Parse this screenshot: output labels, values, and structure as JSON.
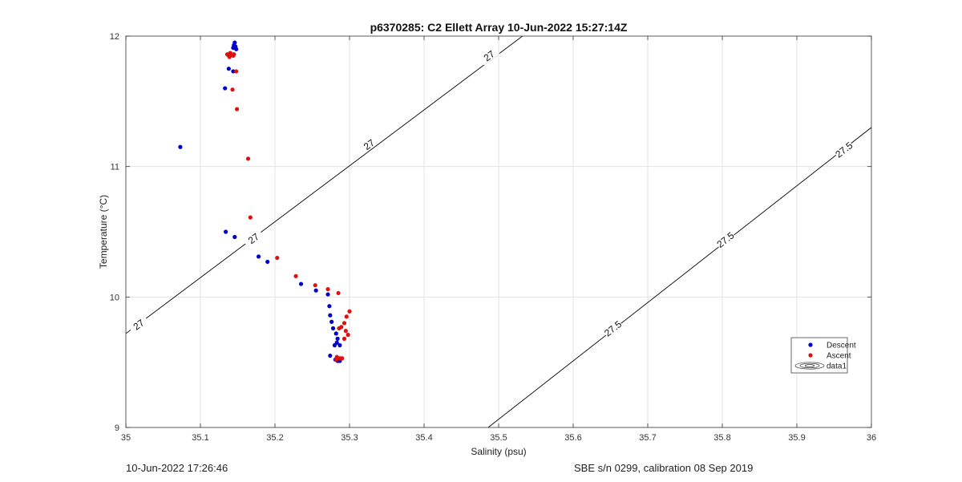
{
  "footer": {
    "left": "10-Jun-2022 17:26:46",
    "right": "SBE s/n 0299, calibration 08 Sep 2019"
  },
  "colors": {
    "descent": "#0000cc",
    "ascent": "#dd1111",
    "contour": "#000000",
    "grid": "#e3e3e3",
    "axis": "#333333"
  },
  "chart_data": {
    "type": "scatter",
    "title": "p6370285: C2 Ellett Array 10-Jun-2022 15:27:14Z",
    "xlabel": "Salinity (psu)",
    "ylabel": "Temperature (°C)",
    "xlim": [
      35,
      36
    ],
    "ylim": [
      9,
      12
    ],
    "xticks": [
      35,
      35.1,
      35.2,
      35.3,
      35.4,
      35.5,
      35.6,
      35.7,
      35.8,
      35.9,
      36
    ],
    "xtick_labels": [
      "35",
      "35.1",
      "35.2",
      "35.3",
      "35.4",
      "35.5",
      "35.6",
      "35.7",
      "35.8",
      "35.9",
      "36"
    ],
    "yticks": [
      9,
      10,
      11,
      12
    ],
    "ytick_labels": [
      "9",
      "10",
      "11",
      "12"
    ],
    "grid": true,
    "legend_position": "lower-right",
    "legend": [
      "Descent",
      "Ascent",
      "data1"
    ],
    "series": [
      {
        "name": "Descent",
        "points": [
          [
            35.073,
            11.15
          ],
          [
            35.133,
            11.6
          ],
          [
            35.138,
            11.75
          ],
          [
            35.144,
            11.73
          ],
          [
            35.145,
            11.93
          ],
          [
            35.146,
            11.95
          ],
          [
            35.147,
            11.92
          ],
          [
            35.148,
            11.9
          ],
          [
            35.144,
            11.91
          ],
          [
            35.134,
            10.5
          ],
          [
            35.146,
            10.46
          ],
          [
            35.178,
            10.31
          ],
          [
            35.19,
            10.27
          ],
          [
            35.235,
            10.1
          ],
          [
            35.255,
            10.05
          ],
          [
            35.271,
            10.02
          ],
          [
            35.273,
            9.93
          ],
          [
            35.274,
            9.86
          ],
          [
            35.276,
            9.81
          ],
          [
            35.278,
            9.76
          ],
          [
            35.282,
            9.72
          ],
          [
            35.284,
            9.68
          ],
          [
            35.283,
            9.65
          ],
          [
            35.287,
            9.63
          ],
          [
            35.28,
            9.63
          ],
          [
            35.274,
            9.55
          ],
          [
            35.281,
            9.52
          ],
          [
            35.284,
            9.51
          ],
          [
            35.287,
            9.51
          ]
        ]
      },
      {
        "name": "Ascent",
        "points": [
          [
            35.136,
            11.86
          ],
          [
            35.138,
            11.85
          ],
          [
            35.14,
            11.87
          ],
          [
            35.142,
            11.86
          ],
          [
            35.144,
            11.85
          ],
          [
            35.139,
            11.84
          ],
          [
            35.141,
            11.86
          ],
          [
            35.145,
            11.86
          ],
          [
            35.148,
            11.73
          ],
          [
            35.143,
            11.59
          ],
          [
            35.149,
            11.44
          ],
          [
            35.164,
            11.06
          ],
          [
            35.167,
            10.61
          ],
          [
            35.203,
            10.3
          ],
          [
            35.228,
            10.16
          ],
          [
            35.254,
            10.09
          ],
          [
            35.271,
            10.06
          ],
          [
            35.285,
            10.03
          ],
          [
            35.3,
            9.89
          ],
          [
            35.296,
            9.85
          ],
          [
            35.293,
            9.8
          ],
          [
            35.289,
            9.77
          ],
          [
            35.286,
            9.76
          ],
          [
            35.295,
            9.74
          ],
          [
            35.298,
            9.71
          ],
          [
            35.293,
            9.68
          ],
          [
            35.283,
            9.54
          ],
          [
            35.287,
            9.53
          ],
          [
            35.29,
            9.53
          ],
          [
            35.282,
            9.52
          ]
        ]
      }
    ],
    "contours": [
      {
        "level": "27",
        "points": [
          [
            35.0,
            9.72
          ],
          [
            35.532,
            12.0
          ]
        ],
        "labels": [
          [
            35.017,
            9.79
          ],
          [
            35.171,
            10.45
          ],
          [
            35.326,
            11.17
          ],
          [
            35.487,
            11.85
          ]
        ]
      },
      {
        "level": "27.5",
        "points": [
          [
            35.486,
            9.0
          ],
          [
            36.0,
            11.3
          ]
        ],
        "labels": [
          [
            35.653,
            9.76
          ],
          [
            35.804,
            10.44
          ],
          [
            35.963,
            11.13
          ]
        ]
      }
    ]
  }
}
